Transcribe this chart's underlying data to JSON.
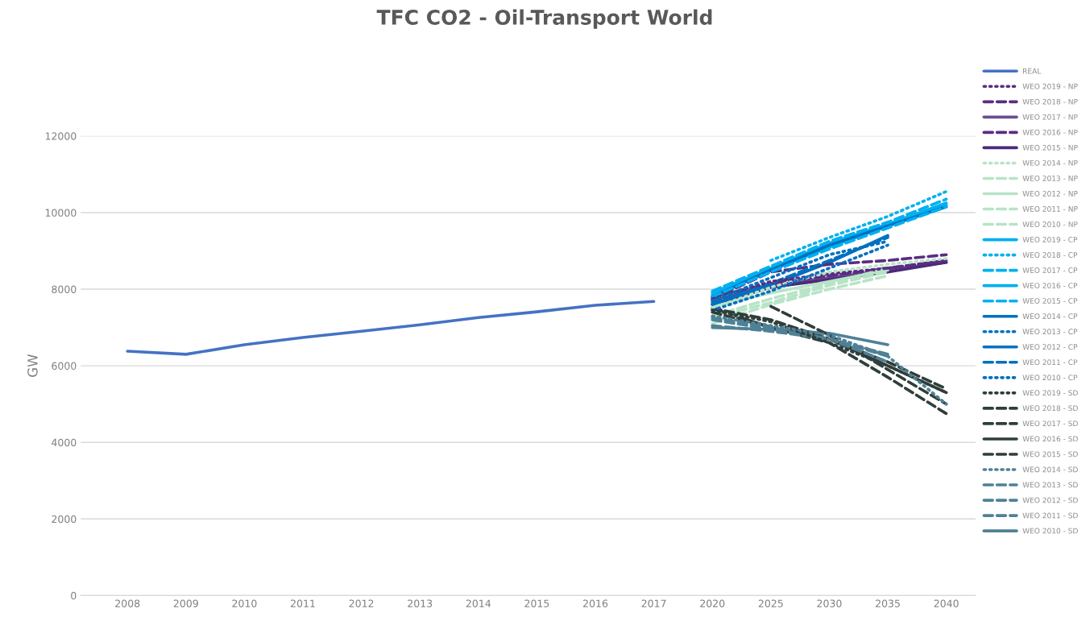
{
  "chart_data": {
    "type": "line",
    "title": "TFC CO2 - Oil-Transport World",
    "ylabel": "GW",
    "categories": [
      "2008",
      "2009",
      "2010",
      "2011",
      "2012",
      "2013",
      "2014",
      "2015",
      "2016",
      "2017",
      "2020",
      "2025",
      "2030",
      "2035",
      "2040"
    ],
    "ylim": [
      0,
      12000
    ],
    "yticks": [
      0,
      2000,
      4000,
      6000,
      8000,
      10000,
      12000
    ],
    "grid": "y",
    "legend": "right",
    "series": [
      {
        "name": "REAL",
        "color": "#4472c4",
        "line_style": "solid",
        "values": [
          6380,
          6300,
          6550,
          6740,
          6900,
          7070,
          7260,
          7410,
          7580,
          7680,
          null,
          null,
          null,
          null,
          null
        ]
      },
      {
        "name": "WEO 2019 - NP",
        "color": "#5a2d82",
        "line_style": "dotted",
        "values": [
          null,
          null,
          null,
          null,
          null,
          null,
          null,
          null,
          null,
          null,
          7750,
          8200,
          8400,
          8550,
          8750
        ]
      },
      {
        "name": "WEO 2018 - NP",
        "color": "#5a2d82",
        "line_style": "dashed",
        "values": [
          null,
          null,
          null,
          null,
          null,
          null,
          null,
          null,
          null,
          null,
          7750,
          8450,
          8650,
          8750,
          8900
        ]
      },
      {
        "name": "WEO 2017 - NP",
        "color": "#6a4d94",
        "line_style": "solid",
        "values": [
          null,
          null,
          null,
          null,
          null,
          null,
          null,
          null,
          null,
          null,
          7700,
          8100,
          8300,
          8500,
          8700
        ]
      },
      {
        "name": "WEO 2016 - NP",
        "color": "#5a2d82",
        "line_style": "dashed",
        "values": [
          null,
          null,
          null,
          null,
          null,
          null,
          null,
          null,
          null,
          null,
          7800,
          8150,
          8350,
          8550,
          8750
        ]
      },
      {
        "name": "WEO 2015 - NP",
        "color": "#4b2a7a",
        "line_style": "solid",
        "values": [
          null,
          null,
          null,
          null,
          null,
          null,
          null,
          null,
          null,
          null,
          7600,
          8050,
          8250,
          8450,
          8700
        ]
      },
      {
        "name": "WEO 2014 - NP",
        "color": "#b7e4c7",
        "line_style": "dotted",
        "values": [
          null,
          null,
          null,
          null,
          null,
          null,
          null,
          null,
          null,
          null,
          7500,
          8050,
          8450,
          8650,
          8800
        ]
      },
      {
        "name": "WEO 2013 - NP",
        "color": "#b7e4c7",
        "line_style": "dashed",
        "values": [
          null,
          null,
          null,
          null,
          null,
          null,
          null,
          null,
          null,
          null,
          7300,
          7750,
          8150,
          8550,
          null
        ]
      },
      {
        "name": "WEO 2012 - NP",
        "color": "#b7e4c7",
        "line_style": "solid",
        "values": [
          null,
          null,
          null,
          null,
          null,
          null,
          null,
          null,
          null,
          null,
          7550,
          7900,
          8200,
          8500,
          null
        ]
      },
      {
        "name": "WEO 2011 - NP",
        "color": "#b7e4c7",
        "line_style": "dashed",
        "values": [
          null,
          null,
          null,
          null,
          null,
          null,
          null,
          null,
          null,
          null,
          7250,
          7650,
          8100,
          8450,
          null
        ]
      },
      {
        "name": "WEO 2010 - NP",
        "color": "#b7e4c7",
        "line_style": "dashed",
        "values": [
          null,
          null,
          null,
          null,
          null,
          null,
          null,
          null,
          null,
          null,
          7100,
          7600,
          8000,
          8350,
          null
        ]
      },
      {
        "name": "WEO 2019 - CP",
        "color": "#00b0f0",
        "line_style": "solid",
        "values": [
          null,
          null,
          null,
          null,
          null,
          null,
          null,
          null,
          null,
          null,
          7900,
          8550,
          9200,
          9700,
          10250
        ]
      },
      {
        "name": "WEO 2018 - CP",
        "color": "#00b0f0",
        "line_style": "dotted",
        "values": [
          null,
          null,
          null,
          null,
          null,
          null,
          null,
          null,
          null,
          null,
          null,
          8750,
          9350,
          9900,
          10550
        ]
      },
      {
        "name": "WEO 2017 - CP",
        "color": "#00b0f0",
        "line_style": "dashed",
        "values": [
          null,
          null,
          null,
          null,
          null,
          null,
          null,
          null,
          null,
          null,
          7950,
          8600,
          9250,
          9750,
          10350
        ]
      },
      {
        "name": "WEO 2016 - CP",
        "color": "#00b0f0",
        "line_style": "solid",
        "values": [
          null,
          null,
          null,
          null,
          null,
          null,
          null,
          null,
          null,
          null,
          7850,
          8500,
          9100,
          9650,
          10200
        ]
      },
      {
        "name": "WEO 2015 - CP",
        "color": "#00b0f0",
        "line_style": "dashed",
        "values": [
          null,
          null,
          null,
          null,
          null,
          null,
          null,
          null,
          null,
          null,
          7800,
          8450,
          9050,
          9600,
          10150
        ]
      },
      {
        "name": "WEO 2014 - CP",
        "color": "#0070c0",
        "line_style": "solid",
        "values": [
          null,
          null,
          null,
          null,
          null,
          null,
          null,
          null,
          null,
          null,
          7800,
          8500,
          9150,
          9650,
          10150
        ]
      },
      {
        "name": "WEO 2013 - CP",
        "color": "#0070c0",
        "line_style": "dotted",
        "values": [
          null,
          null,
          null,
          null,
          null,
          null,
          null,
          null,
          null,
          null,
          7700,
          8300,
          8900,
          9250,
          null
        ]
      },
      {
        "name": "WEO 2012 - CP",
        "color": "#0070c0",
        "line_style": "solid",
        "values": [
          null,
          null,
          null,
          null,
          null,
          null,
          null,
          null,
          null,
          null,
          7600,
          8100,
          8700,
          9400,
          null
        ]
      },
      {
        "name": "WEO 2011 - CP",
        "color": "#0070c0",
        "line_style": "dashed",
        "values": [
          null,
          null,
          null,
          null,
          null,
          null,
          null,
          null,
          null,
          null,
          7650,
          8150,
          8750,
          9350,
          null
        ]
      },
      {
        "name": "WEO 2010 - CP",
        "color": "#0070c0",
        "line_style": "dotted",
        "values": [
          null,
          null,
          null,
          null,
          null,
          null,
          null,
          null,
          null,
          null,
          7450,
          7950,
          8550,
          9150,
          null
        ]
      },
      {
        "name": "WEO 2019 - SD",
        "color": "#2f3e3b",
        "line_style": "dotted",
        "values": [
          null,
          null,
          null,
          null,
          null,
          null,
          null,
          null,
          null,
          null,
          7450,
          7150,
          6600,
          6000,
          5300
        ]
      },
      {
        "name": "WEO 2018 - SD",
        "color": "#2f3e3b",
        "line_style": "dashed",
        "values": [
          null,
          null,
          null,
          null,
          null,
          null,
          null,
          null,
          null,
          null,
          7400,
          7000,
          6600,
          5700,
          4750
        ]
      },
      {
        "name": "WEO 2017 - SD",
        "color": "#2f3e3b",
        "line_style": "dashed",
        "values": [
          null,
          null,
          null,
          null,
          null,
          null,
          null,
          null,
          null,
          null,
          null,
          7550,
          6800,
          5900,
          5000
        ]
      },
      {
        "name": "WEO 2016 - SD",
        "color": "#2f3e3b",
        "line_style": "solid",
        "values": [
          null,
          null,
          null,
          null,
          null,
          null,
          null,
          null,
          null,
          null,
          7500,
          7000,
          6700,
          6000,
          5300
        ]
      },
      {
        "name": "WEO 2015 - SD",
        "color": "#2f3e3b",
        "line_style": "dashed",
        "values": [
          null,
          null,
          null,
          null,
          null,
          null,
          null,
          null,
          null,
          null,
          7500,
          7200,
          6700,
          6100,
          5400
        ]
      },
      {
        "name": "WEO 2014 - SD",
        "color": "#4f8196",
        "line_style": "dotted",
        "values": [
          null,
          null,
          null,
          null,
          null,
          null,
          null,
          null,
          null,
          null,
          7300,
          7050,
          6800,
          6250,
          5000
        ]
      },
      {
        "name": "WEO 2013 - SD",
        "color": "#4f8196",
        "line_style": "dashed",
        "values": [
          null,
          null,
          null,
          null,
          null,
          null,
          null,
          null,
          null,
          null,
          7250,
          7000,
          6700,
          6100,
          null
        ]
      },
      {
        "name": "WEO 2012 - SD",
        "color": "#4f8196",
        "line_style": "dashed",
        "values": [
          null,
          null,
          null,
          null,
          null,
          null,
          null,
          null,
          null,
          null,
          7200,
          6950,
          6700,
          6300,
          null
        ]
      },
      {
        "name": "WEO 2011 - SD",
        "color": "#4f8196",
        "line_style": "dashed",
        "values": [
          null,
          null,
          null,
          null,
          null,
          null,
          null,
          null,
          null,
          null,
          7050,
          6900,
          6700,
          6250,
          null
        ]
      },
      {
        "name": "WEO 2010 - SD",
        "color": "#4f8196",
        "line_style": "solid",
        "values": [
          null,
          null,
          null,
          null,
          null,
          null,
          null,
          null,
          null,
          null,
          7000,
          6950,
          6850,
          6550,
          null
        ]
      }
    ]
  }
}
